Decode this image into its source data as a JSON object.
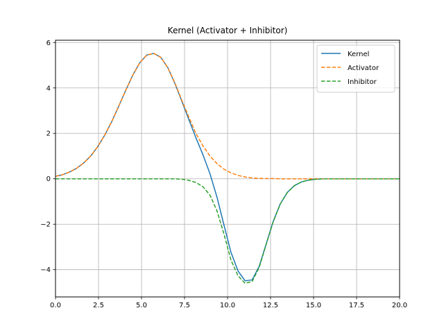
{
  "chart_data": {
    "type": "line",
    "title": "Kernel (Activator + Inhibitor)",
    "xlabel": "",
    "ylabel": "",
    "xlim": [
      0,
      20
    ],
    "ylim": [
      -5.2,
      6.1
    ],
    "xticks": [
      0,
      2.5,
      5,
      7.5,
      10,
      12.5,
      15,
      17.5,
      20
    ],
    "xtick_labels": [
      "0.0",
      "2.5",
      "5.0",
      "7.5",
      "10.0",
      "12.5",
      "15.0",
      "17.5",
      "20.0"
    ],
    "yticks": [
      -4,
      -2,
      0,
      2,
      4,
      6
    ],
    "ytick_labels": [
      "−4",
      "−2",
      "0",
      "2",
      "4",
      "6"
    ],
    "grid": true,
    "legend_position": "top-right",
    "x": [
      0,
      0.41,
      0.82,
      1.22,
      1.63,
      2.04,
      2.45,
      2.86,
      3.27,
      3.67,
      4.08,
      4.49,
      4.9,
      5.31,
      5.71,
      6.12,
      6.53,
      6.94,
      7.35,
      7.76,
      8.16,
      8.57,
      8.98,
      9.39,
      9.8,
      10.2,
      10.61,
      11.02,
      11.43,
      11.84,
      12.24,
      12.65,
      13.06,
      13.47,
      13.88,
      14.29,
      14.69,
      15.1,
      15.51,
      15.92,
      16.33,
      16.73,
      17.14,
      17.55,
      17.96,
      18.37,
      18.78,
      19.18,
      19.59,
      20
    ],
    "series": [
      {
        "name": "Kernel",
        "color": "#1f77b4",
        "style": "solid",
        "values": [
          0.11,
          0.18,
          0.3,
          0.46,
          0.69,
          1.0,
          1.41,
          1.92,
          2.52,
          3.19,
          3.89,
          4.56,
          5.11,
          5.45,
          5.52,
          5.35,
          4.89,
          4.2,
          3.4,
          2.59,
          1.81,
          1.06,
          0.22,
          -0.82,
          -2.06,
          -3.24,
          -4.06,
          -4.49,
          -4.45,
          -3.85,
          -2.88,
          -1.88,
          -1.11,
          -0.6,
          -0.3,
          -0.14,
          -0.06,
          -0.02,
          0,
          0,
          0,
          0,
          0,
          0,
          0,
          0,
          0,
          0,
          0,
          0
        ]
      },
      {
        "name": "Activator",
        "color": "#ff7f0e",
        "style": "dashed",
        "values": [
          0.11,
          0.18,
          0.3,
          0.46,
          0.69,
          1.0,
          1.41,
          1.92,
          2.52,
          3.19,
          3.89,
          4.56,
          5.11,
          5.45,
          5.52,
          5.35,
          4.89,
          4.22,
          3.44,
          2.7,
          2.0,
          1.45,
          1.0,
          0.67,
          0.42,
          0.26,
          0.15,
          0.08,
          0.04,
          0.02,
          0.01,
          0.01,
          0,
          0,
          0,
          0,
          0,
          0,
          0,
          0,
          0,
          0,
          0,
          0,
          0,
          0,
          0,
          0,
          0,
          0
        ]
      },
      {
        "name": "Inhibitor",
        "color": "#2ca02c",
        "style": "dashed",
        "values": [
          0,
          0,
          0,
          0,
          0,
          0,
          0,
          0,
          0,
          0,
          0,
          0,
          0,
          0,
          0,
          0,
          0,
          0,
          -0.02,
          -0.07,
          -0.16,
          -0.35,
          -0.72,
          -1.42,
          -2.45,
          -3.58,
          -4.27,
          -4.6,
          -4.52,
          -3.9,
          -2.9,
          -1.9,
          -1.12,
          -0.61,
          -0.31,
          -0.14,
          -0.06,
          -0.02,
          0,
          0,
          0,
          0,
          0,
          0,
          0,
          0,
          0,
          0,
          0,
          0
        ]
      }
    ]
  },
  "colors": {
    "grid": "#b0b0b0",
    "axes": "#000000"
  }
}
